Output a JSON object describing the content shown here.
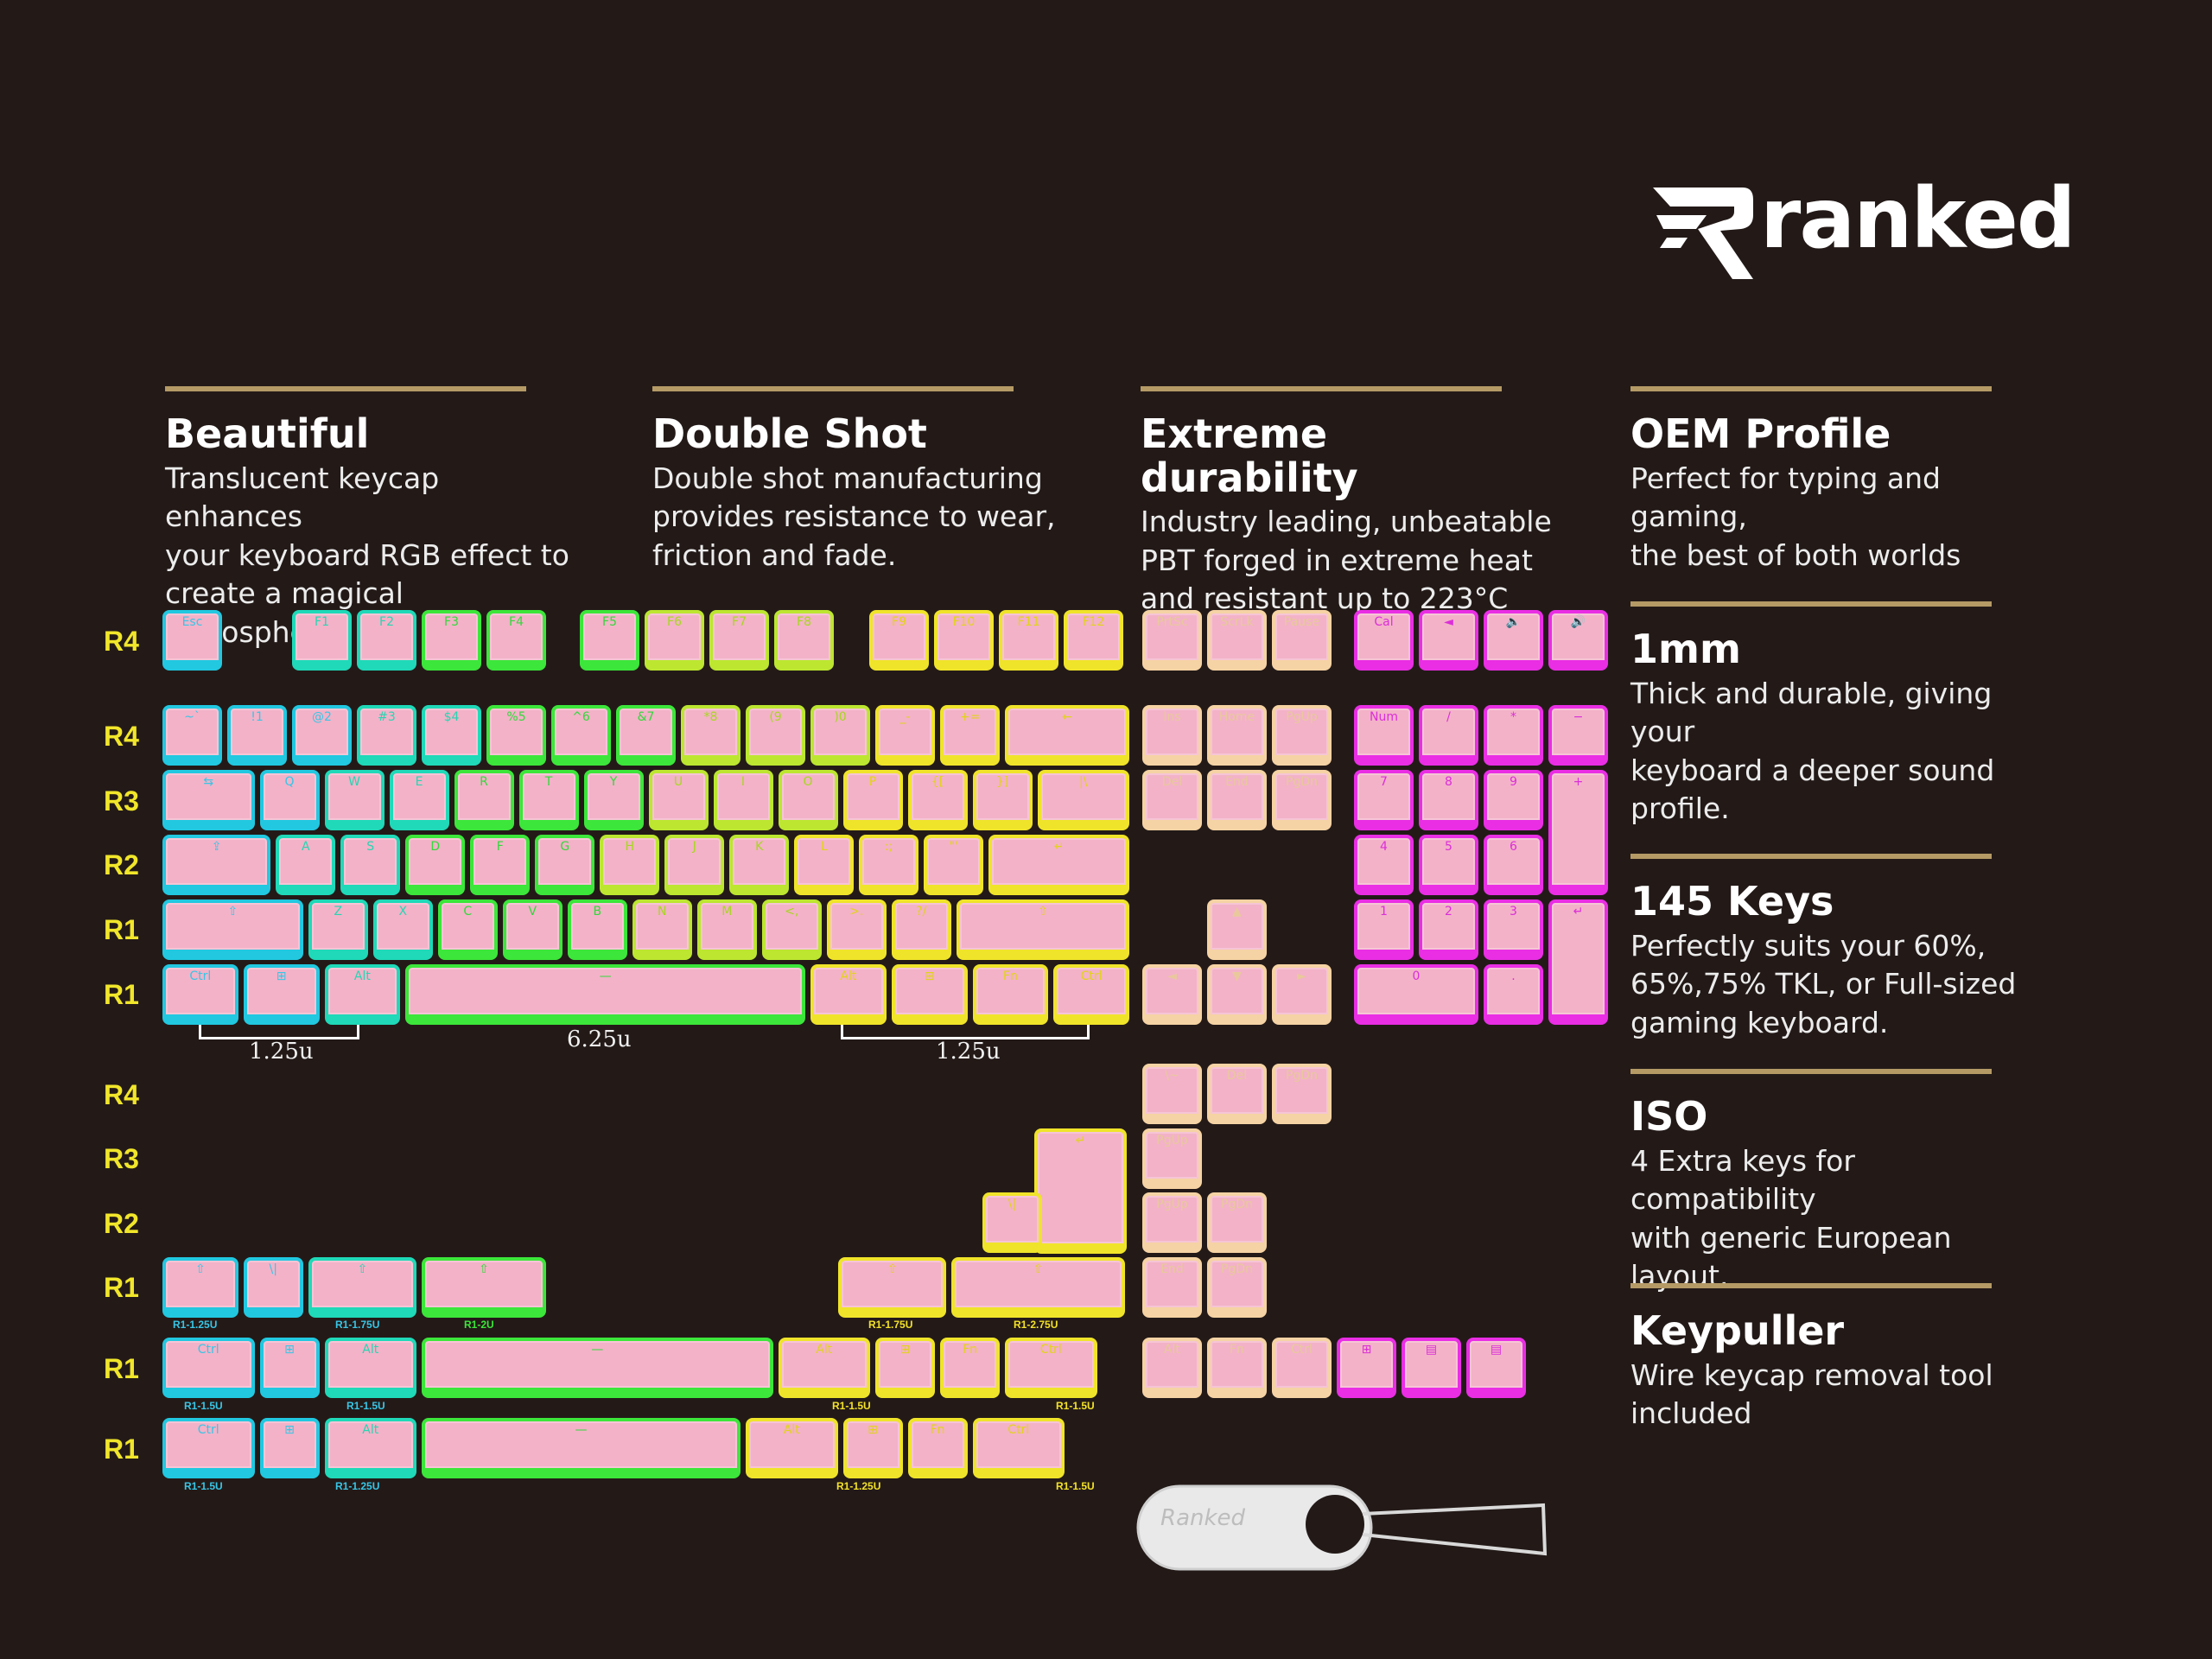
{
  "brand": {
    "name": "ranked",
    "accent": "#b59a66"
  },
  "features": [
    {
      "title": "Beautiful",
      "desc": "Translucent keycap enhances\nyour keyboard RGB effect to\ncreate a magical atmosphere."
    },
    {
      "title": "Double Shot",
      "desc": "Double shot manufacturing\nprovides resistance to wear,\nfriction and fade."
    },
    {
      "title": "Extreme durability",
      "desc": "Industry leading, unbeatable\nPBT forged in extreme heat\nand resistant up to 223°C"
    },
    {
      "title": "OEM Profile",
      "desc": "Perfect for typing and gaming,\nthe best of both worlds"
    },
    {
      "title": "1mm",
      "desc": "Thick and durable, giving your\nkeyboard a deeper sound\nprofile."
    },
    {
      "title": "145 Keys",
      "desc": "Perfectly suits your 60%,\n65%,75% TKL, or Full-sized\ngaming keyboard."
    },
    {
      "title": "ISO",
      "desc": "4 Extra keys for compatibility\nwith generic European layout."
    },
    {
      "title": "Keypuller",
      "desc": "Wire keycap removal tool\nincluded"
    }
  ],
  "row_labels": [
    "R4",
    "R4",
    "R3",
    "R2",
    "R1",
    "R1",
    "R4",
    "R3",
    "R2",
    "R1",
    "R1",
    "R1"
  ],
  "size_notes": [
    "1.25u",
    "6.25u",
    "1.25u"
  ],
  "small_sizes": [
    "R1-1.25U",
    "R1-1.75U",
    "R1-2U",
    "R1-1.75U",
    "R1-2.75U",
    "R1-1.5U",
    "R1-1.5U",
    "R1-1.5U",
    "R1-1.5U",
    "R1-1.5U",
    "R1-1.25U",
    "R1-1.25U",
    "R1-1.5U"
  ],
  "keypuller_label": "Ranked",
  "key_colors": {
    "cyan": "#21c8e0",
    "teal": "#1fd9b8",
    "green": "#3ce63a",
    "lime": "#bce630",
    "yellow": "#f0e42a",
    "peach": "#f6d3a4",
    "magenta": "#e92ee4",
    "keycap": "#f3adc8"
  },
  "keys": [
    [
      "Esc",
      "cyan"
    ],
    [
      "F1",
      "teal"
    ],
    [
      "F2",
      "teal"
    ],
    [
      "F3",
      "green"
    ],
    [
      "F4",
      "green"
    ],
    [
      "F5",
      "green"
    ],
    [
      "F6",
      "lime"
    ],
    [
      "F7",
      "lime"
    ],
    [
      "F8",
      "lime"
    ],
    [
      "F9",
      "yellow"
    ],
    [
      "F10",
      "yellow"
    ],
    [
      "F11",
      "yellow"
    ],
    [
      "F12",
      "yellow"
    ],
    [
      "PrtSc",
      "peach"
    ],
    [
      "ScrLk",
      "peach"
    ],
    [
      "Pause",
      "peach"
    ],
    [
      "Cal",
      "magenta"
    ],
    [
      "◄",
      "magenta"
    ],
    [
      "🔈",
      "magenta"
    ],
    [
      "🔊",
      "magenta"
    ],
    [
      "~`",
      "cyan"
    ],
    [
      "!1",
      "cyan"
    ],
    [
      "@2",
      "cyan"
    ],
    [
      "#3",
      "teal"
    ],
    [
      "$4",
      "teal"
    ],
    [
      "%5",
      "green"
    ],
    [
      "^6",
      "green"
    ],
    [
      "&7",
      "green"
    ],
    [
      "*8",
      "lime"
    ],
    [
      "(9",
      "lime"
    ],
    [
      ")0",
      "lime"
    ],
    [
      "_-",
      "yellow"
    ],
    [
      "+=",
      "yellow"
    ],
    [
      "←",
      "yellow"
    ],
    [
      "Ins",
      "peach"
    ],
    [
      "Home",
      "peach"
    ],
    [
      "PgUp",
      "peach"
    ],
    [
      "Num",
      "magenta"
    ],
    [
      "/",
      "magenta"
    ],
    [
      "*",
      "magenta"
    ],
    [
      "−",
      "magenta"
    ],
    [
      "⇆",
      "cyan"
    ],
    [
      "Q",
      "cyan"
    ],
    [
      "W",
      "teal"
    ],
    [
      "E",
      "teal"
    ],
    [
      "R",
      "green"
    ],
    [
      "T",
      "green"
    ],
    [
      "Y",
      "green"
    ],
    [
      "U",
      "lime"
    ],
    [
      "I",
      "lime"
    ],
    [
      "O",
      "lime"
    ],
    [
      "P",
      "yellow"
    ],
    [
      "{[",
      "yellow"
    ],
    [
      "}]",
      "yellow"
    ],
    [
      "|\\",
      "yellow"
    ],
    [
      "Del",
      "peach"
    ],
    [
      "End",
      "peach"
    ],
    [
      "PgDn",
      "peach"
    ],
    [
      "7",
      "magenta"
    ],
    [
      "8",
      "magenta"
    ],
    [
      "9",
      "magenta"
    ],
    [
      "+",
      "magenta"
    ],
    [
      "⇪",
      "cyan"
    ],
    [
      "A",
      "teal"
    ],
    [
      "S",
      "teal"
    ],
    [
      "D",
      "green"
    ],
    [
      "F",
      "green"
    ],
    [
      "G",
      "green"
    ],
    [
      "H",
      "lime"
    ],
    [
      "J",
      "lime"
    ],
    [
      "K",
      "lime"
    ],
    [
      "L",
      "yellow"
    ],
    [
      ":;",
      "yellow"
    ],
    [
      "\"'",
      "yellow"
    ],
    [
      "↵",
      "yellow"
    ],
    [
      "4",
      "magenta"
    ],
    [
      "5",
      "magenta"
    ],
    [
      "6",
      "magenta"
    ],
    [
      "⇧",
      "cyan"
    ],
    [
      "Z",
      "teal"
    ],
    [
      "X",
      "teal"
    ],
    [
      "C",
      "green"
    ],
    [
      "V",
      "green"
    ],
    [
      "B",
      "green"
    ],
    [
      "N",
      "lime"
    ],
    [
      "M",
      "lime"
    ],
    [
      "<,",
      "lime"
    ],
    [
      ">.",
      "yellow"
    ],
    [
      "?/",
      "yellow"
    ],
    [
      "⇧",
      "yellow"
    ],
    [
      "▲",
      "peach"
    ],
    [
      "1",
      "magenta"
    ],
    [
      "2",
      "magenta"
    ],
    [
      "3",
      "magenta"
    ],
    [
      "↵",
      "magenta"
    ],
    [
      "Ctrl",
      "cyan"
    ],
    [
      "⊞",
      "cyan"
    ],
    [
      "Alt",
      "teal"
    ],
    [
      "—",
      "green"
    ],
    [
      "Alt",
      "yellow"
    ],
    [
      "⊞",
      "yellow"
    ],
    [
      "Fn",
      "yellow"
    ],
    [
      "Ctrl",
      "yellow"
    ],
    [
      "◄",
      "peach"
    ],
    [
      "▼",
      "peach"
    ],
    [
      "►",
      "peach"
    ],
    [
      "0",
      "magenta"
    ],
    [
      ".",
      "magenta"
    ],
    [
      "\\~",
      "peach"
    ],
    [
      "Del",
      "peach"
    ],
    [
      "PgDn",
      "peach"
    ],
    [
      "↵",
      "yellow"
    ],
    [
      "PgUp",
      "peach"
    ],
    [
      "\\|",
      "yellow"
    ],
    [
      "PgUp",
      "peach"
    ],
    [
      "PgDn",
      "peach"
    ],
    [
      "⇧",
      "cyan"
    ],
    [
      "\\|",
      "cyan"
    ],
    [
      "⇧",
      "teal"
    ],
    [
      "⇧",
      "green"
    ],
    [
      "⇧",
      "yellow"
    ],
    [
      "⇧",
      "yellow"
    ],
    [
      "End",
      "peach"
    ],
    [
      "PgDn",
      "peach"
    ],
    [
      "Ctrl",
      "cyan"
    ],
    [
      "⊞",
      "cyan"
    ],
    [
      "Alt",
      "teal"
    ],
    [
      "—",
      "green"
    ],
    [
      "Alt",
      "yellow"
    ],
    [
      "⊞",
      "yellow"
    ],
    [
      "Fn",
      "yellow"
    ],
    [
      "Ctrl",
      "yellow"
    ],
    [
      "Alt",
      "peach"
    ],
    [
      "Fn",
      "peach"
    ],
    [
      "Ctrl",
      "peach"
    ],
    [
      "⊞",
      "magenta"
    ],
    [
      "▤",
      "magenta"
    ],
    [
      "▤",
      "magenta"
    ],
    [
      "Ctrl",
      "cyan"
    ],
    [
      "⊞",
      "cyan"
    ],
    [
      "Alt",
      "teal"
    ],
    [
      "—",
      "green"
    ],
    [
      "Alt",
      "yellow"
    ],
    [
      "⊞",
      "yellow"
    ],
    [
      "Fn",
      "yellow"
    ],
    [
      "Ctrl",
      "yellow"
    ]
  ]
}
